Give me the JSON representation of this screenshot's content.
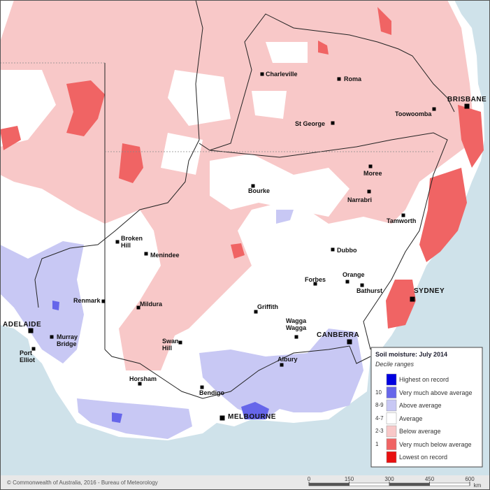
{
  "towns": [
    "Charleville",
    "Roma",
    "Toowoomba",
    "BRISBANE",
    "St George",
    "Moree",
    "Bourke",
    "Narrabri",
    "Tamworth",
    "Broken Hill",
    "Menindee",
    "Dubbo",
    "Forbes",
    "Orange",
    "Bathurst",
    "SYDNEY",
    "Renmark",
    "Mildura",
    "Griffith",
    "Wagga Wagga",
    "CANBERRA",
    "ADELAIDE",
    "Murray Bridge",
    "Port Elliot",
    "Swan Hill",
    "Albury",
    "Horsham",
    "Bendigo",
    "MELBOURNE"
  ],
  "legend": {
    "title": "Soil moisture: July 2014",
    "subtitle": "Decile ranges",
    "items": [
      {
        "label": "Highest on record",
        "color": "#0000e0"
      },
      {
        "decile": "10",
        "label": "Very much above average",
        "color": "#6666ea"
      },
      {
        "decile": "8-9",
        "label": "Above average",
        "color": "#c8c8f4"
      },
      {
        "decile": "4-7",
        "label": "Average",
        "color": "#ffffff"
      },
      {
        "decile": "2-3",
        "label": "Below average",
        "color": "#f8c8c8"
      },
      {
        "decile": "1",
        "label": "Very much below average",
        "color": "#f06464"
      },
      {
        "label": "Lowest on record",
        "color": "#e81010"
      }
    ]
  },
  "copyright": "© Commonwealth of Australia, 2016 - Bureau of Meteorology",
  "scale": {
    "ticks": [
      0,
      150,
      300,
      450,
      600
    ],
    "unit": "km"
  }
}
